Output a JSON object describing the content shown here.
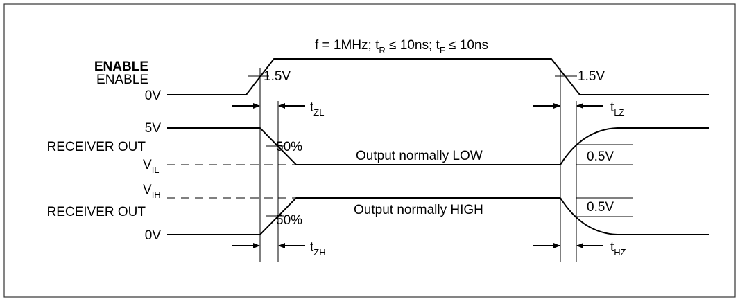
{
  "header": {
    "frequency_prefix": "f = 1MHz;  t",
    "tr_sub": "R",
    "tr_suffix": " ≤ 10ns;  t",
    "tf_sub": "F",
    "tf_suffix": " ≤ 10ns"
  },
  "enable": {
    "label_bold": "ENABLE",
    "label": "ENABLE",
    "zero_label": "0V",
    "threshold_left": "1.5V",
    "threshold_right": "1.5V"
  },
  "receiver_low": {
    "label": "RECEIVER OUT",
    "high_label": "5V",
    "vil_main": "V",
    "vil_sub": "IL",
    "percent_label": "50%",
    "caption": "Output normally LOW",
    "delta_label": "0.5V"
  },
  "receiver_high": {
    "label": "RECEIVER OUT",
    "vih_main": "V",
    "vih_sub": "IH",
    "zero_label": "0V",
    "percent_label": "50%",
    "caption": "Output normally HIGH",
    "delta_label": "0.5V"
  },
  "timings": {
    "tzl_main": "t",
    "tzl_sub": "ZL",
    "tlz_main": "t",
    "tlz_sub": "LZ",
    "tzh_main": "t",
    "tzh_sub": "ZH",
    "thz_main": "t",
    "thz_sub": "HZ"
  },
  "colors": {
    "line": "#000000",
    "border": "#333333",
    "background": "#ffffff"
  }
}
